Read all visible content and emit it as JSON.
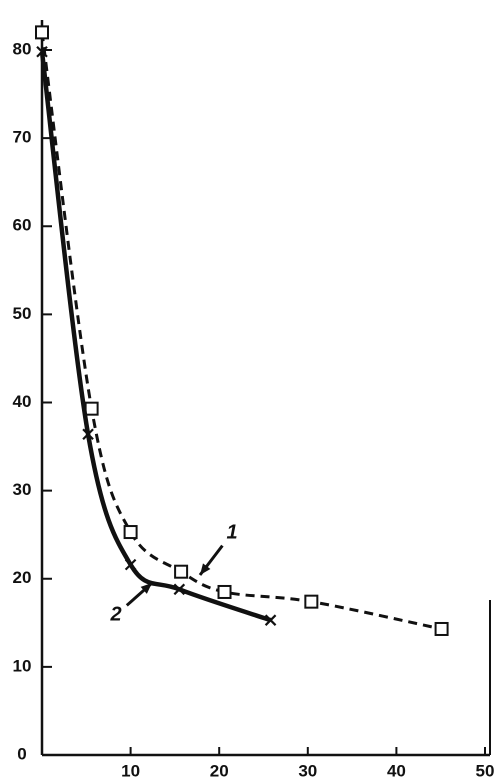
{
  "chart_data": {
    "type": "line",
    "series": [
      {
        "name": "1",
        "color": "#111111",
        "marker": "square",
        "dash": true,
        "x": [
          0,
          5.6,
          10,
          15.7,
          20.6,
          30.4,
          45.1
        ],
        "values": [
          82,
          39.3,
          25.3,
          20.8,
          18.5,
          17.4,
          14.3
        ]
      },
      {
        "name": "2",
        "color": "#111111",
        "marker": "x",
        "dash": false,
        "x": [
          0,
          5.2,
          10,
          15.5,
          25.8
        ],
        "values": [
          79.8,
          36.4,
          21.6,
          18.8,
          15.3
        ]
      }
    ],
    "xlim": [
      0,
      50
    ],
    "xticks": [
      10,
      20,
      30,
      40,
      50
    ],
    "ylim": [
      0,
      80
    ],
    "yticks": [
      0,
      10,
      20,
      30,
      40,
      50,
      60,
      70,
      80
    ]
  }
}
